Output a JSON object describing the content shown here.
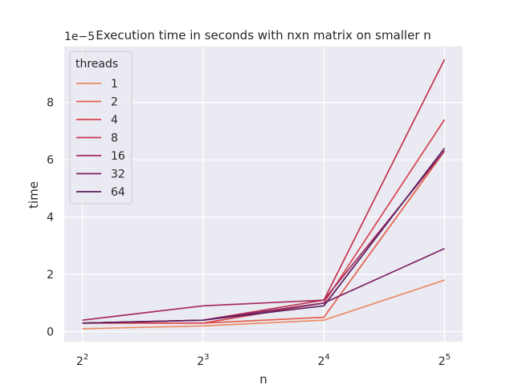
{
  "chart_data": {
    "type": "line",
    "title": "Execution time in seconds with nxn matrix on smaller n",
    "xlabel": "n",
    "ylabel": "time",
    "y_offset_label": "1e−5",
    "x": [
      4,
      8,
      16,
      32
    ],
    "x_scale": "log2",
    "x_tick_labels": [
      {
        "base": "2",
        "exp": "2"
      },
      {
        "base": "2",
        "exp": "3"
      },
      {
        "base": "2",
        "exp": "4"
      },
      {
        "base": "2",
        "exp": "5"
      }
    ],
    "y_ticks": [
      0,
      2,
      4,
      6,
      8
    ],
    "y_tick_labels": [
      "0",
      "2",
      "4",
      "6",
      "8"
    ],
    "ylim": [
      -0.35,
      9.95
    ],
    "grid": true,
    "legend": {
      "title": "threads",
      "position": "top-left"
    },
    "series": [
      {
        "name": "1",
        "color": "#ec8a63",
        "values": [
          0.1,
          0.2,
          0.4,
          1.8
        ]
      },
      {
        "name": "2",
        "color": "#e3604e",
        "values": [
          0.3,
          0.3,
          0.5,
          6.3
        ]
      },
      {
        "name": "4",
        "color": "#d7434d",
        "values": [
          0.3,
          0.3,
          1.0,
          7.4
        ]
      },
      {
        "name": "8",
        "color": "#c23352",
        "values": [
          0.3,
          0.4,
          1.1,
          9.5
        ]
      },
      {
        "name": "16",
        "color": "#a52a5c",
        "values": [
          0.4,
          0.9,
          1.1,
          6.3
        ]
      },
      {
        "name": "32",
        "color": "#7d2163",
        "values": [
          0.3,
          0.4,
          1.0,
          2.9
        ]
      },
      {
        "name": "64",
        "color": "#5a1e5e",
        "values": [
          0.3,
          0.4,
          0.9,
          6.4
        ]
      }
    ]
  }
}
